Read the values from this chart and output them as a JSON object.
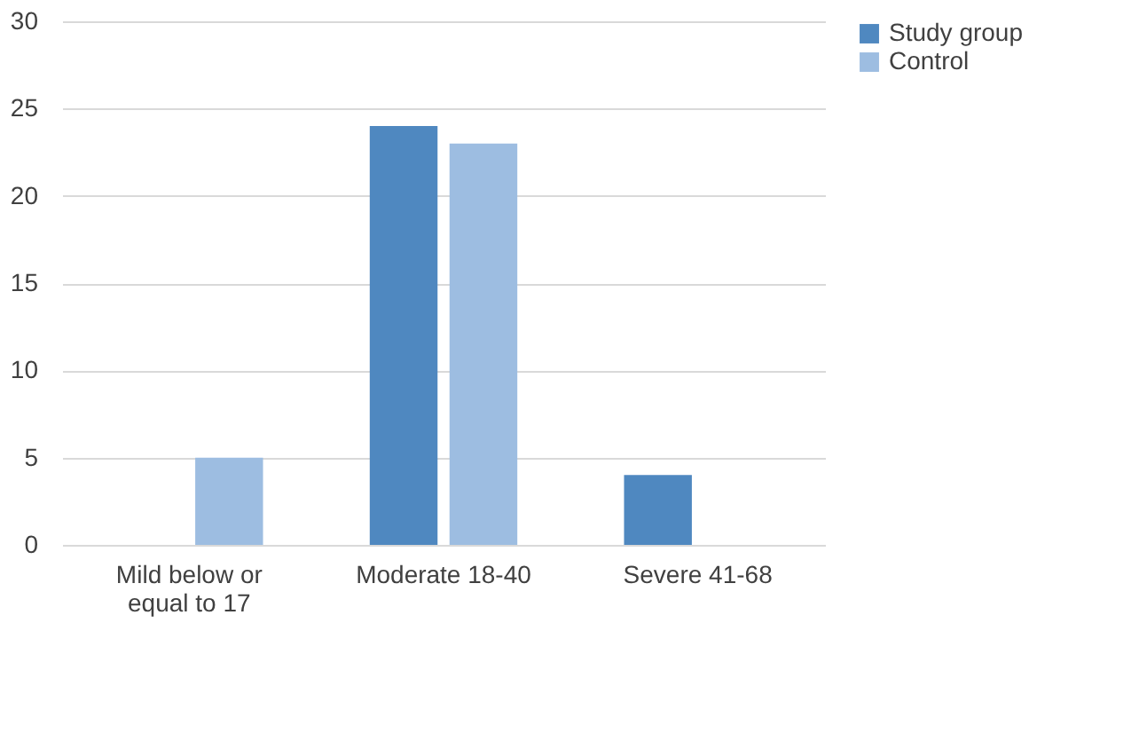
{
  "chart_data": {
    "type": "bar",
    "categories": [
      "Mild below or equal to 17",
      "Moderate 18-40",
      "Severe 41-68"
    ],
    "series": [
      {
        "name": "Study group",
        "color": "#4f88c0",
        "values": [
          0,
          24,
          4
        ]
      },
      {
        "name": "Control",
        "color": "#9dbde1",
        "values": [
          5,
          23,
          0
        ]
      }
    ],
    "ylim": [
      0,
      30
    ],
    "yticks": [
      0,
      5,
      10,
      15,
      20,
      25,
      30
    ],
    "grid": "y",
    "legend": "right"
  }
}
